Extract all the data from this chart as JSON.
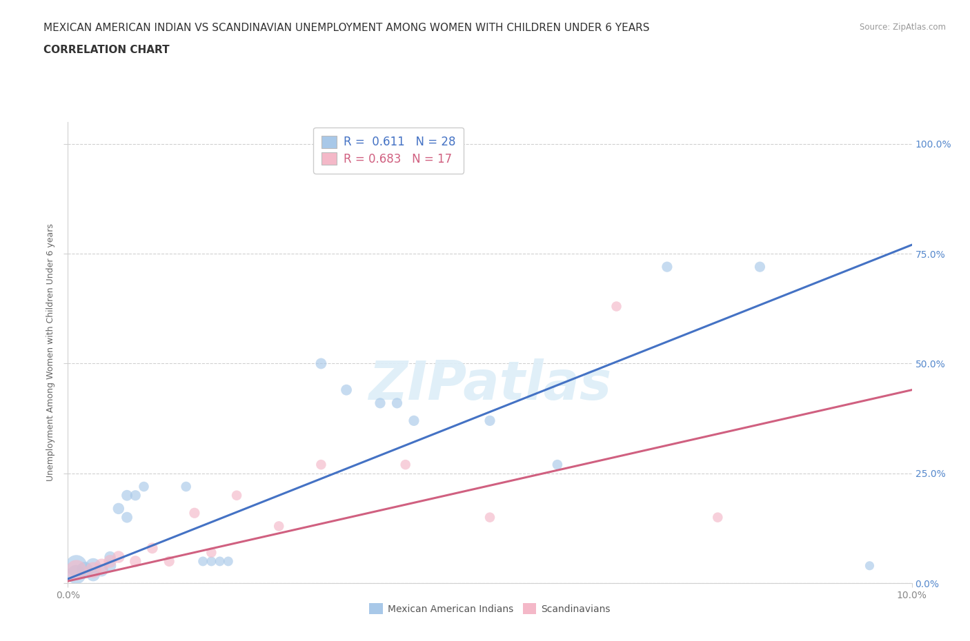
{
  "title_line1": "MEXICAN AMERICAN INDIAN VS SCANDINAVIAN UNEMPLOYMENT AMONG WOMEN WITH CHILDREN UNDER 6 YEARS",
  "title_line2": "CORRELATION CHART",
  "source": "Source: ZipAtlas.com",
  "ylabel": "Unemployment Among Women with Children Under 6 years",
  "xlim": [
    0.0,
    0.1
  ],
  "ylim": [
    0.0,
    1.05
  ],
  "xtick_positions": [
    0.0,
    0.1
  ],
  "xtick_labels": [
    "0.0%",
    "10.0%"
  ],
  "ytick_values": [
    0.0,
    0.25,
    0.5,
    0.75,
    1.0
  ],
  "ytick_labels": [
    "0.0%",
    "25.0%",
    "50.0%",
    "75.0%",
    "100.0%"
  ],
  "legend_blue_R": "0.611",
  "legend_blue_N": "28",
  "legend_pink_R": "0.683",
  "legend_pink_N": "17",
  "blue_fill": "#a8c8e8",
  "pink_fill": "#f4b8c8",
  "blue_line_color": "#4472c4",
  "pink_line_color": "#d06080",
  "grid_color": "#d0d0d0",
  "right_tick_color": "#5588cc",
  "left_tick_color": "#888888",
  "background_color": "#ffffff",
  "watermark": "ZIPatlas",
  "watermark_color": "#ddeef8",
  "blue_points": [
    [
      0.001,
      0.04
    ],
    [
      0.001,
      0.02
    ],
    [
      0.002,
      0.03
    ],
    [
      0.003,
      0.04
    ],
    [
      0.003,
      0.02
    ],
    [
      0.004,
      0.03
    ],
    [
      0.005,
      0.04
    ],
    [
      0.005,
      0.06
    ],
    [
      0.006,
      0.17
    ],
    [
      0.007,
      0.2
    ],
    [
      0.007,
      0.15
    ],
    [
      0.008,
      0.2
    ],
    [
      0.009,
      0.22
    ],
    [
      0.014,
      0.22
    ],
    [
      0.016,
      0.05
    ],
    [
      0.017,
      0.05
    ],
    [
      0.018,
      0.05
    ],
    [
      0.019,
      0.05
    ],
    [
      0.03,
      0.5
    ],
    [
      0.033,
      0.44
    ],
    [
      0.037,
      0.41
    ],
    [
      0.039,
      0.41
    ],
    [
      0.041,
      0.37
    ],
    [
      0.05,
      0.37
    ],
    [
      0.058,
      0.27
    ],
    [
      0.071,
      0.72
    ],
    [
      0.082,
      0.72
    ],
    [
      0.095,
      0.04
    ]
  ],
  "pink_points": [
    [
      0.001,
      0.03
    ],
    [
      0.003,
      0.03
    ],
    [
      0.004,
      0.04
    ],
    [
      0.005,
      0.05
    ],
    [
      0.006,
      0.06
    ],
    [
      0.008,
      0.05
    ],
    [
      0.01,
      0.08
    ],
    [
      0.012,
      0.05
    ],
    [
      0.015,
      0.16
    ],
    [
      0.017,
      0.07
    ],
    [
      0.02,
      0.2
    ],
    [
      0.025,
      0.13
    ],
    [
      0.03,
      0.27
    ],
    [
      0.04,
      0.27
    ],
    [
      0.05,
      0.15
    ],
    [
      0.065,
      0.63
    ],
    [
      0.077,
      0.15
    ]
  ],
  "blue_sizes": [
    500,
    400,
    300,
    250,
    200,
    180,
    160,
    140,
    140,
    130,
    130,
    120,
    110,
    110,
    100,
    100,
    100,
    100,
    130,
    130,
    120,
    120,
    120,
    120,
    110,
    120,
    120,
    90
  ],
  "pink_sizes": [
    450,
    280,
    220,
    180,
    160,
    140,
    130,
    120,
    120,
    110,
    110,
    110,
    110,
    110,
    110,
    110,
    110
  ],
  "blue_line_x": [
    0.0,
    0.1
  ],
  "blue_line_y": [
    0.01,
    0.77
  ],
  "pink_line_x": [
    0.0,
    0.1
  ],
  "pink_line_y": [
    0.005,
    0.44
  ],
  "title_fontsize": 11,
  "subtitle_fontsize": 11,
  "tick_fontsize": 10,
  "legend_fontsize": 12,
  "axis_label_fontsize": 9
}
